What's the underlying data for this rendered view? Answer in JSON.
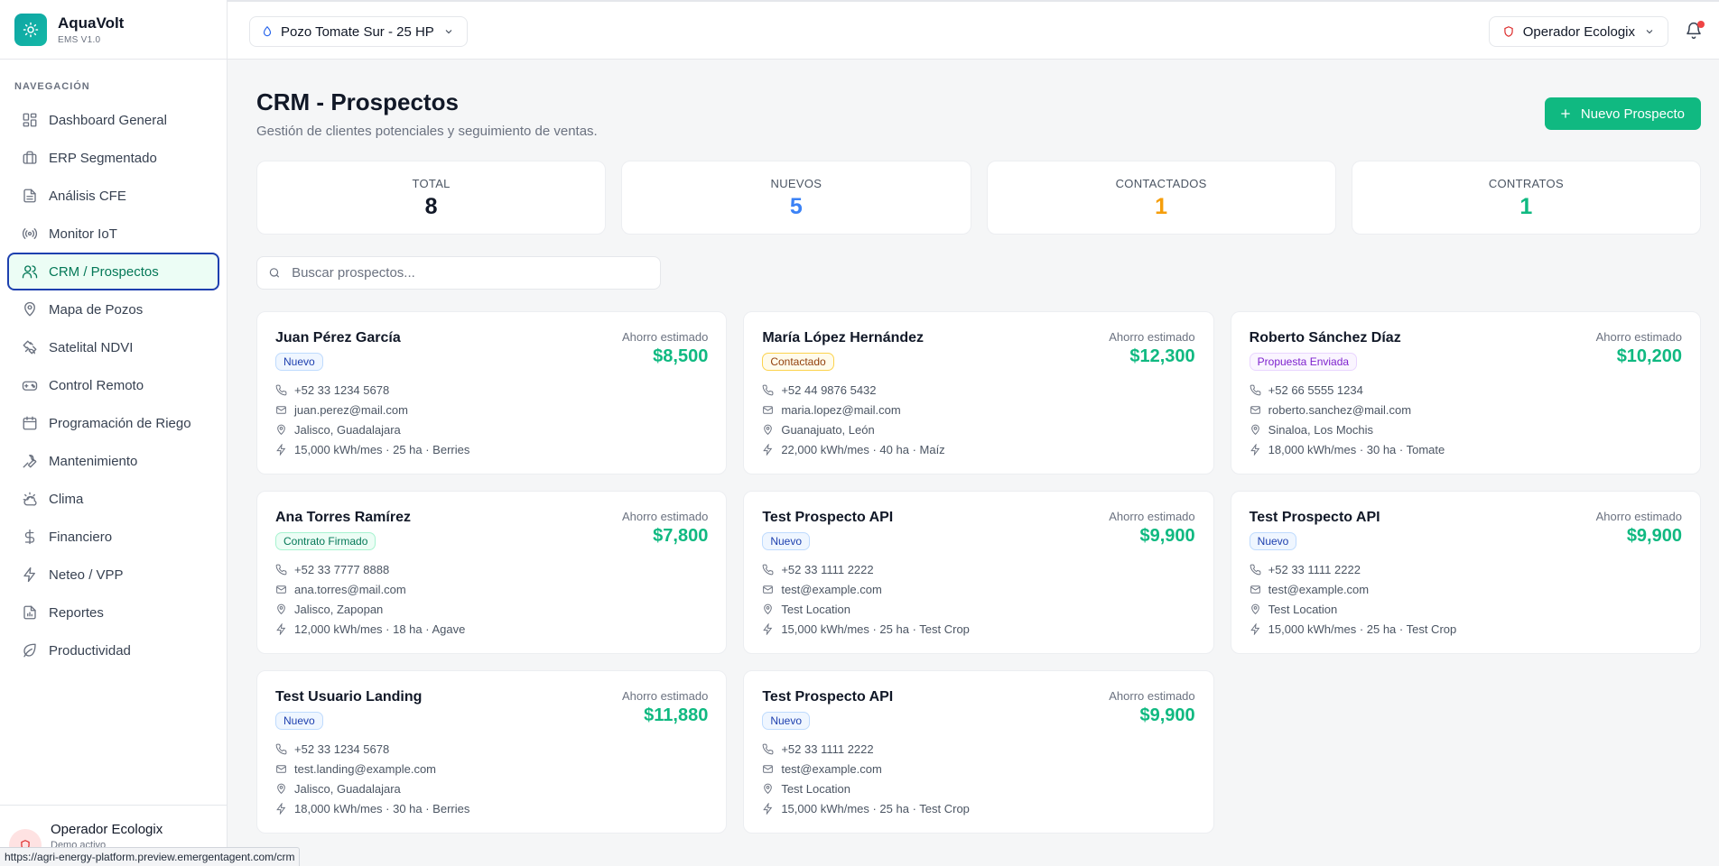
{
  "brand": {
    "name": "AquaVolt",
    "version": "EMS V1.0"
  },
  "sidebar": {
    "section_title": "NAVEGACIÓN",
    "items": [
      {
        "label": "Dashboard General",
        "icon": "dashboard-icon"
      },
      {
        "label": "ERP Segmentado",
        "icon": "briefcase-icon"
      },
      {
        "label": "Análisis CFE",
        "icon": "document-icon"
      },
      {
        "label": "Monitor IoT",
        "icon": "signal-icon"
      },
      {
        "label": "CRM / Prospectos",
        "icon": "users-icon",
        "active": true
      },
      {
        "label": "Mapa de Pozos",
        "icon": "map-pin-icon"
      },
      {
        "label": "Satelital NDVI",
        "icon": "satellite-icon"
      },
      {
        "label": "Control Remoto",
        "icon": "gamepad-icon"
      },
      {
        "label": "Programación de Riego",
        "icon": "calendar-icon"
      },
      {
        "label": "Mantenimiento",
        "icon": "wrench-icon"
      },
      {
        "label": "Clima",
        "icon": "cloud-sun-icon"
      },
      {
        "label": "Financiero",
        "icon": "dollar-icon"
      },
      {
        "label": "Neteo / VPP",
        "icon": "bolt-icon"
      },
      {
        "label": "Reportes",
        "icon": "report-icon"
      },
      {
        "label": "Productividad",
        "icon": "leaf-icon"
      }
    ],
    "footer": {
      "name": "Operador Ecologix",
      "subtitle": "Demo activo"
    }
  },
  "header": {
    "well_selector": "Pozo Tomate Sur - 25 HP",
    "operator_selector": "Operador Ecologix"
  },
  "page": {
    "title": "CRM - Prospectos",
    "subtitle": "Gestión de clientes potenciales y seguimiento de ventas.",
    "new_button": "Nuevo Prospecto",
    "search_placeholder": "Buscar prospectos..."
  },
  "stats": [
    {
      "label": "TOTAL",
      "value": "8",
      "color": "#111827"
    },
    {
      "label": "NUEVOS",
      "value": "5",
      "color": "#3b82f6"
    },
    {
      "label": "CONTACTADOS",
      "value": "1",
      "color": "#f59e0b"
    },
    {
      "label": "CONTRATOS",
      "value": "1",
      "color": "#10b981"
    }
  ],
  "savings_label": "Ahorro estimado",
  "prospects": [
    {
      "name": "Juan Pérez García",
      "status": "Nuevo",
      "status_class": "b-nuevo",
      "savings": "$8,500",
      "phone": "+52 33 1234 5678",
      "email": "juan.perez@mail.com",
      "location": "Jalisco, Guadalajara",
      "consumption": "15,000 kWh/mes · 25 ha · Berries"
    },
    {
      "name": "María López Hernández",
      "status": "Contactado",
      "status_class": "b-contactado",
      "savings": "$12,300",
      "phone": "+52 44 9876 5432",
      "email": "maria.lopez@mail.com",
      "location": "Guanajuato, León",
      "consumption": "22,000 kWh/mes · 40 ha · Maíz"
    },
    {
      "name": "Roberto Sánchez Díaz",
      "status": "Propuesta Enviada",
      "status_class": "b-propuesta",
      "savings": "$10,200",
      "phone": "+52 66 5555 1234",
      "email": "roberto.sanchez@mail.com",
      "location": "Sinaloa, Los Mochis",
      "consumption": "18,000 kWh/mes · 30 ha · Tomate"
    },
    {
      "name": "Ana Torres Ramírez",
      "status": "Contrato Firmado",
      "status_class": "b-contrato",
      "savings": "$7,800",
      "phone": "+52 33 7777 8888",
      "email": "ana.torres@mail.com",
      "location": "Jalisco, Zapopan",
      "consumption": "12,000 kWh/mes · 18 ha · Agave"
    },
    {
      "name": "Test Prospecto API",
      "status": "Nuevo",
      "status_class": "b-nuevo",
      "savings": "$9,900",
      "phone": "+52 33 1111 2222",
      "email": "test@example.com",
      "location": "Test Location",
      "consumption": "15,000 kWh/mes · 25 ha · Test Crop"
    },
    {
      "name": "Test Prospecto API",
      "status": "Nuevo",
      "status_class": "b-nuevo",
      "savings": "$9,900",
      "phone": "+52 33 1111 2222",
      "email": "test@example.com",
      "location": "Test Location",
      "consumption": "15,000 kWh/mes · 25 ha · Test Crop"
    },
    {
      "name": "Test Usuario Landing",
      "status": "Nuevo",
      "status_class": "b-nuevo",
      "savings": "$11,880",
      "phone": "+52 33 1234 5678",
      "email": "test.landing@example.com",
      "location": "Jalisco, Guadalajara",
      "consumption": "18,000 kWh/mes · 30 ha · Berries"
    },
    {
      "name": "Test Prospecto API",
      "status": "Nuevo",
      "status_class": "b-nuevo",
      "savings": "$9,900",
      "phone": "+52 33 1111 2222",
      "email": "test@example.com",
      "location": "Test Location",
      "consumption": "15,000 kWh/mes · 25 ha · Test Crop"
    }
  ],
  "status_bar_url": "https://agri-energy-platform.preview.emergentagent.com/crm"
}
